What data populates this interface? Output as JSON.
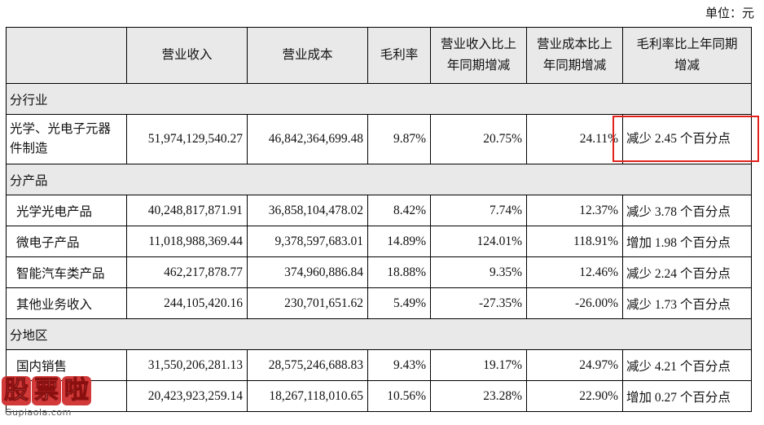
{
  "unit_label": "单位：元",
  "headers": [
    "",
    "营业收入",
    "营业成本",
    "毛利率",
    "营业收入比上年同期增减",
    "营业成本比上年同期增减",
    "毛利率比上年同期增减"
  ],
  "header_display": {
    "h4_line1": "营业收入比上",
    "h4_line2": "年同期增减",
    "h5_line1": "营业成本比上",
    "h5_line2": "年同期增减",
    "h6_line1": "毛利率比上年同期",
    "h6_line2": "增减"
  },
  "sections": [
    {
      "title": "分行业",
      "rows": [
        {
          "name": "光学、光电子元器件制造",
          "name_line1": "光学、光电子元器",
          "name_line2": "件制造",
          "revenue": "51,974,129,540.27",
          "cost": "46,842,364,699.48",
          "margin": "9.87%",
          "rev_change": "20.75%",
          "cost_change": "24.11%",
          "margin_change": "减少 2.45 个百分点"
        }
      ]
    },
    {
      "title": "分产品",
      "rows": [
        {
          "name": "光学光电产品",
          "revenue": "40,248,817,871.91",
          "cost": "36,858,104,478.02",
          "margin": "8.42%",
          "rev_change": "7.74%",
          "cost_change": "12.37%",
          "margin_change": "减少 3.78 个百分点"
        },
        {
          "name": "微电子产品",
          "revenue": "11,018,988,369.44",
          "cost": "9,378,597,683.01",
          "margin": "14.89%",
          "rev_change": "124.01%",
          "cost_change": "118.91%",
          "margin_change": "增加 1.98 个百分点"
        },
        {
          "name": "智能汽车类产品",
          "revenue": "462,217,878.77",
          "cost": "374,960,886.84",
          "margin": "18.88%",
          "rev_change": "9.35%",
          "cost_change": "12.46%",
          "margin_change": "减少 2.24 个百分点"
        },
        {
          "name": "其他业务收入",
          "revenue": "244,105,420.16",
          "cost": "230,701,651.62",
          "margin": "5.49%",
          "rev_change": "-27.35%",
          "cost_change": "-26.00%",
          "margin_change": "减少 1.73 个百分点"
        }
      ]
    },
    {
      "title": "分地区",
      "rows": [
        {
          "name": "国内销售",
          "revenue": "31,550,206,281.13",
          "cost": "28,575,246,688.83",
          "margin": "9.43%",
          "rev_change": "19.17%",
          "cost_change": "24.97%",
          "margin_change": "减少 4.21 个百分点"
        },
        {
          "name": "",
          "revenue": "20,423,923,259.14",
          "cost": "18,267,118,010.65",
          "margin": "10.56%",
          "rev_change": "23.28%",
          "cost_change": "22.90%",
          "margin_change": "增加 0.27 个百分点"
        }
      ]
    }
  ],
  "watermark": {
    "chars": [
      "股",
      "票",
      "啦"
    ],
    "url": "Gupiaola.com"
  },
  "colors": {
    "header_bg": "#e9e9e9",
    "highlight_border": "#e2211c",
    "watermark": "#d23a3a"
  }
}
